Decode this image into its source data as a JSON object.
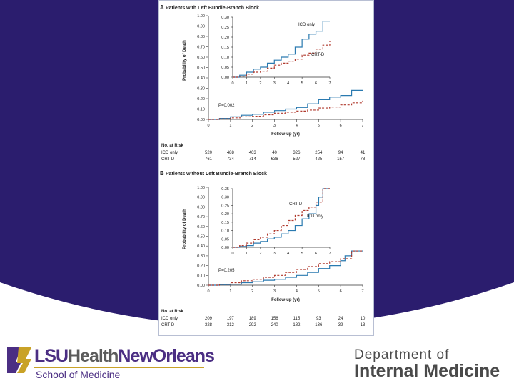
{
  "colors": {
    "purple": "#2b1d6e",
    "icd": "#2a7ab0",
    "crt": "#b03a2e"
  },
  "branding": {
    "logo_part1": "LSU",
    "logo_part2": "Health",
    "logo_part3": "NewOrleans",
    "school": "School of Medicine",
    "dept_line1": "Department of",
    "dept_line2": "Internal Medicine"
  },
  "chart_data": [
    {
      "type": "line",
      "panel_letter": "A",
      "title": "Patients with Left Bundle-Branch Block",
      "xlabel": "Follow-up (yr)",
      "ylabel": "Probability of Death",
      "xlim": [
        0,
        7
      ],
      "ylim": [
        0,
        1.0
      ],
      "xticks": [
        "0",
        "1",
        "2",
        "3",
        "4",
        "5",
        "6",
        "7"
      ],
      "yticks": [
        "0.00",
        "0.10",
        "0.20",
        "0.30",
        "0.40",
        "0.50",
        "0.60",
        "0.70",
        "0.80",
        "0.90",
        "1.00"
      ],
      "p_value": "P=0.002",
      "series": [
        {
          "name": "ICD only",
          "x": [
            0,
            0.5,
            1,
            1.5,
            2,
            2.5,
            3,
            3.5,
            4,
            4.5,
            5,
            5.5,
            6,
            6.5,
            7
          ],
          "y": [
            0,
            0.01,
            0.025,
            0.04,
            0.05,
            0.07,
            0.085,
            0.1,
            0.115,
            0.15,
            0.19,
            0.215,
            0.23,
            0.28,
            0.28
          ]
        },
        {
          "name": "CRT-D",
          "x": [
            0,
            0.5,
            1,
            1.5,
            2,
            2.5,
            3,
            3.5,
            4,
            4.5,
            5,
            5.5,
            6,
            6.5,
            7
          ],
          "y": [
            0,
            0.005,
            0.015,
            0.025,
            0.03,
            0.045,
            0.06,
            0.07,
            0.08,
            0.09,
            0.11,
            0.12,
            0.14,
            0.16,
            0.18
          ]
        }
      ],
      "inset": {
        "xlim": [
          0,
          7
        ],
        "ylim": [
          0,
          0.3
        ],
        "xticks": [
          "0",
          "1",
          "2",
          "3",
          "4",
          "5",
          "6",
          "7"
        ],
        "yticks": [
          "0.00",
          "0.05",
          "0.10",
          "0.15",
          "0.20",
          "0.25",
          "0.30"
        ]
      },
      "risk_table": {
        "header": "No. at Risk",
        "rows": [
          {
            "label": "ICD only",
            "values": [
              "520",
              "488",
              "463",
              "40",
              "326",
              "254",
              "94",
              "41"
            ]
          },
          {
            "label": "CRT-D",
            "values": [
              "761",
              "734",
              "714",
              "636",
              "527",
              "425",
              "157",
              "78"
            ]
          }
        ]
      }
    },
    {
      "type": "line",
      "panel_letter": "B",
      "title": "Patients without Left Bundle-Branch Block",
      "xlabel": "Follow-up (yr)",
      "ylabel": "Probability of Death",
      "xlim": [
        0,
        7
      ],
      "ylim": [
        0,
        1.0
      ],
      "xticks": [
        "0",
        "1",
        "2",
        "3",
        "4",
        "5",
        "6",
        "7"
      ],
      "yticks": [
        "0.00",
        "0.10",
        "0.20",
        "0.30",
        "0.40",
        "0.50",
        "0.60",
        "0.70",
        "0.80",
        "0.90",
        "1.00"
      ],
      "p_value": "P=0.205",
      "series": [
        {
          "name": "ICD only",
          "x": [
            0,
            0.5,
            1,
            1.5,
            2,
            2.5,
            3,
            3.5,
            4,
            4.5,
            5,
            5.5,
            6,
            6.2,
            6.5,
            7
          ],
          "y": [
            0,
            0.005,
            0.01,
            0.025,
            0.035,
            0.05,
            0.06,
            0.08,
            0.1,
            0.13,
            0.17,
            0.2,
            0.25,
            0.3,
            0.35,
            0.35
          ]
        },
        {
          "name": "CRT-D",
          "x": [
            0,
            0.5,
            1,
            1.5,
            2,
            2.5,
            3,
            3.5,
            4,
            4.5,
            5,
            5.5,
            6,
            6.5,
            7
          ],
          "y": [
            0,
            0.01,
            0.025,
            0.045,
            0.06,
            0.08,
            0.1,
            0.13,
            0.16,
            0.19,
            0.22,
            0.24,
            0.27,
            0.35,
            0.35
          ]
        }
      ],
      "inset": {
        "xlim": [
          0,
          7
        ],
        "ylim": [
          0,
          0.35
        ],
        "xticks": [
          "0",
          "1",
          "2",
          "3",
          "4",
          "5",
          "6",
          "7"
        ],
        "yticks": [
          "0.00",
          "0.05",
          "0.10",
          "0.15",
          "0.20",
          "0.25",
          "0.30",
          "0.35"
        ]
      },
      "risk_table": {
        "header": "No. at Risk",
        "rows": [
          {
            "label": "ICD only",
            "values": [
              "209",
              "197",
              "189",
              "156",
              "115",
              "93",
              "24",
              "10"
            ]
          },
          {
            "label": "CRT-D",
            "values": [
              "328",
              "312",
              "292",
              "240",
              "182",
              "136",
              "39",
              "13"
            ]
          }
        ]
      }
    }
  ]
}
